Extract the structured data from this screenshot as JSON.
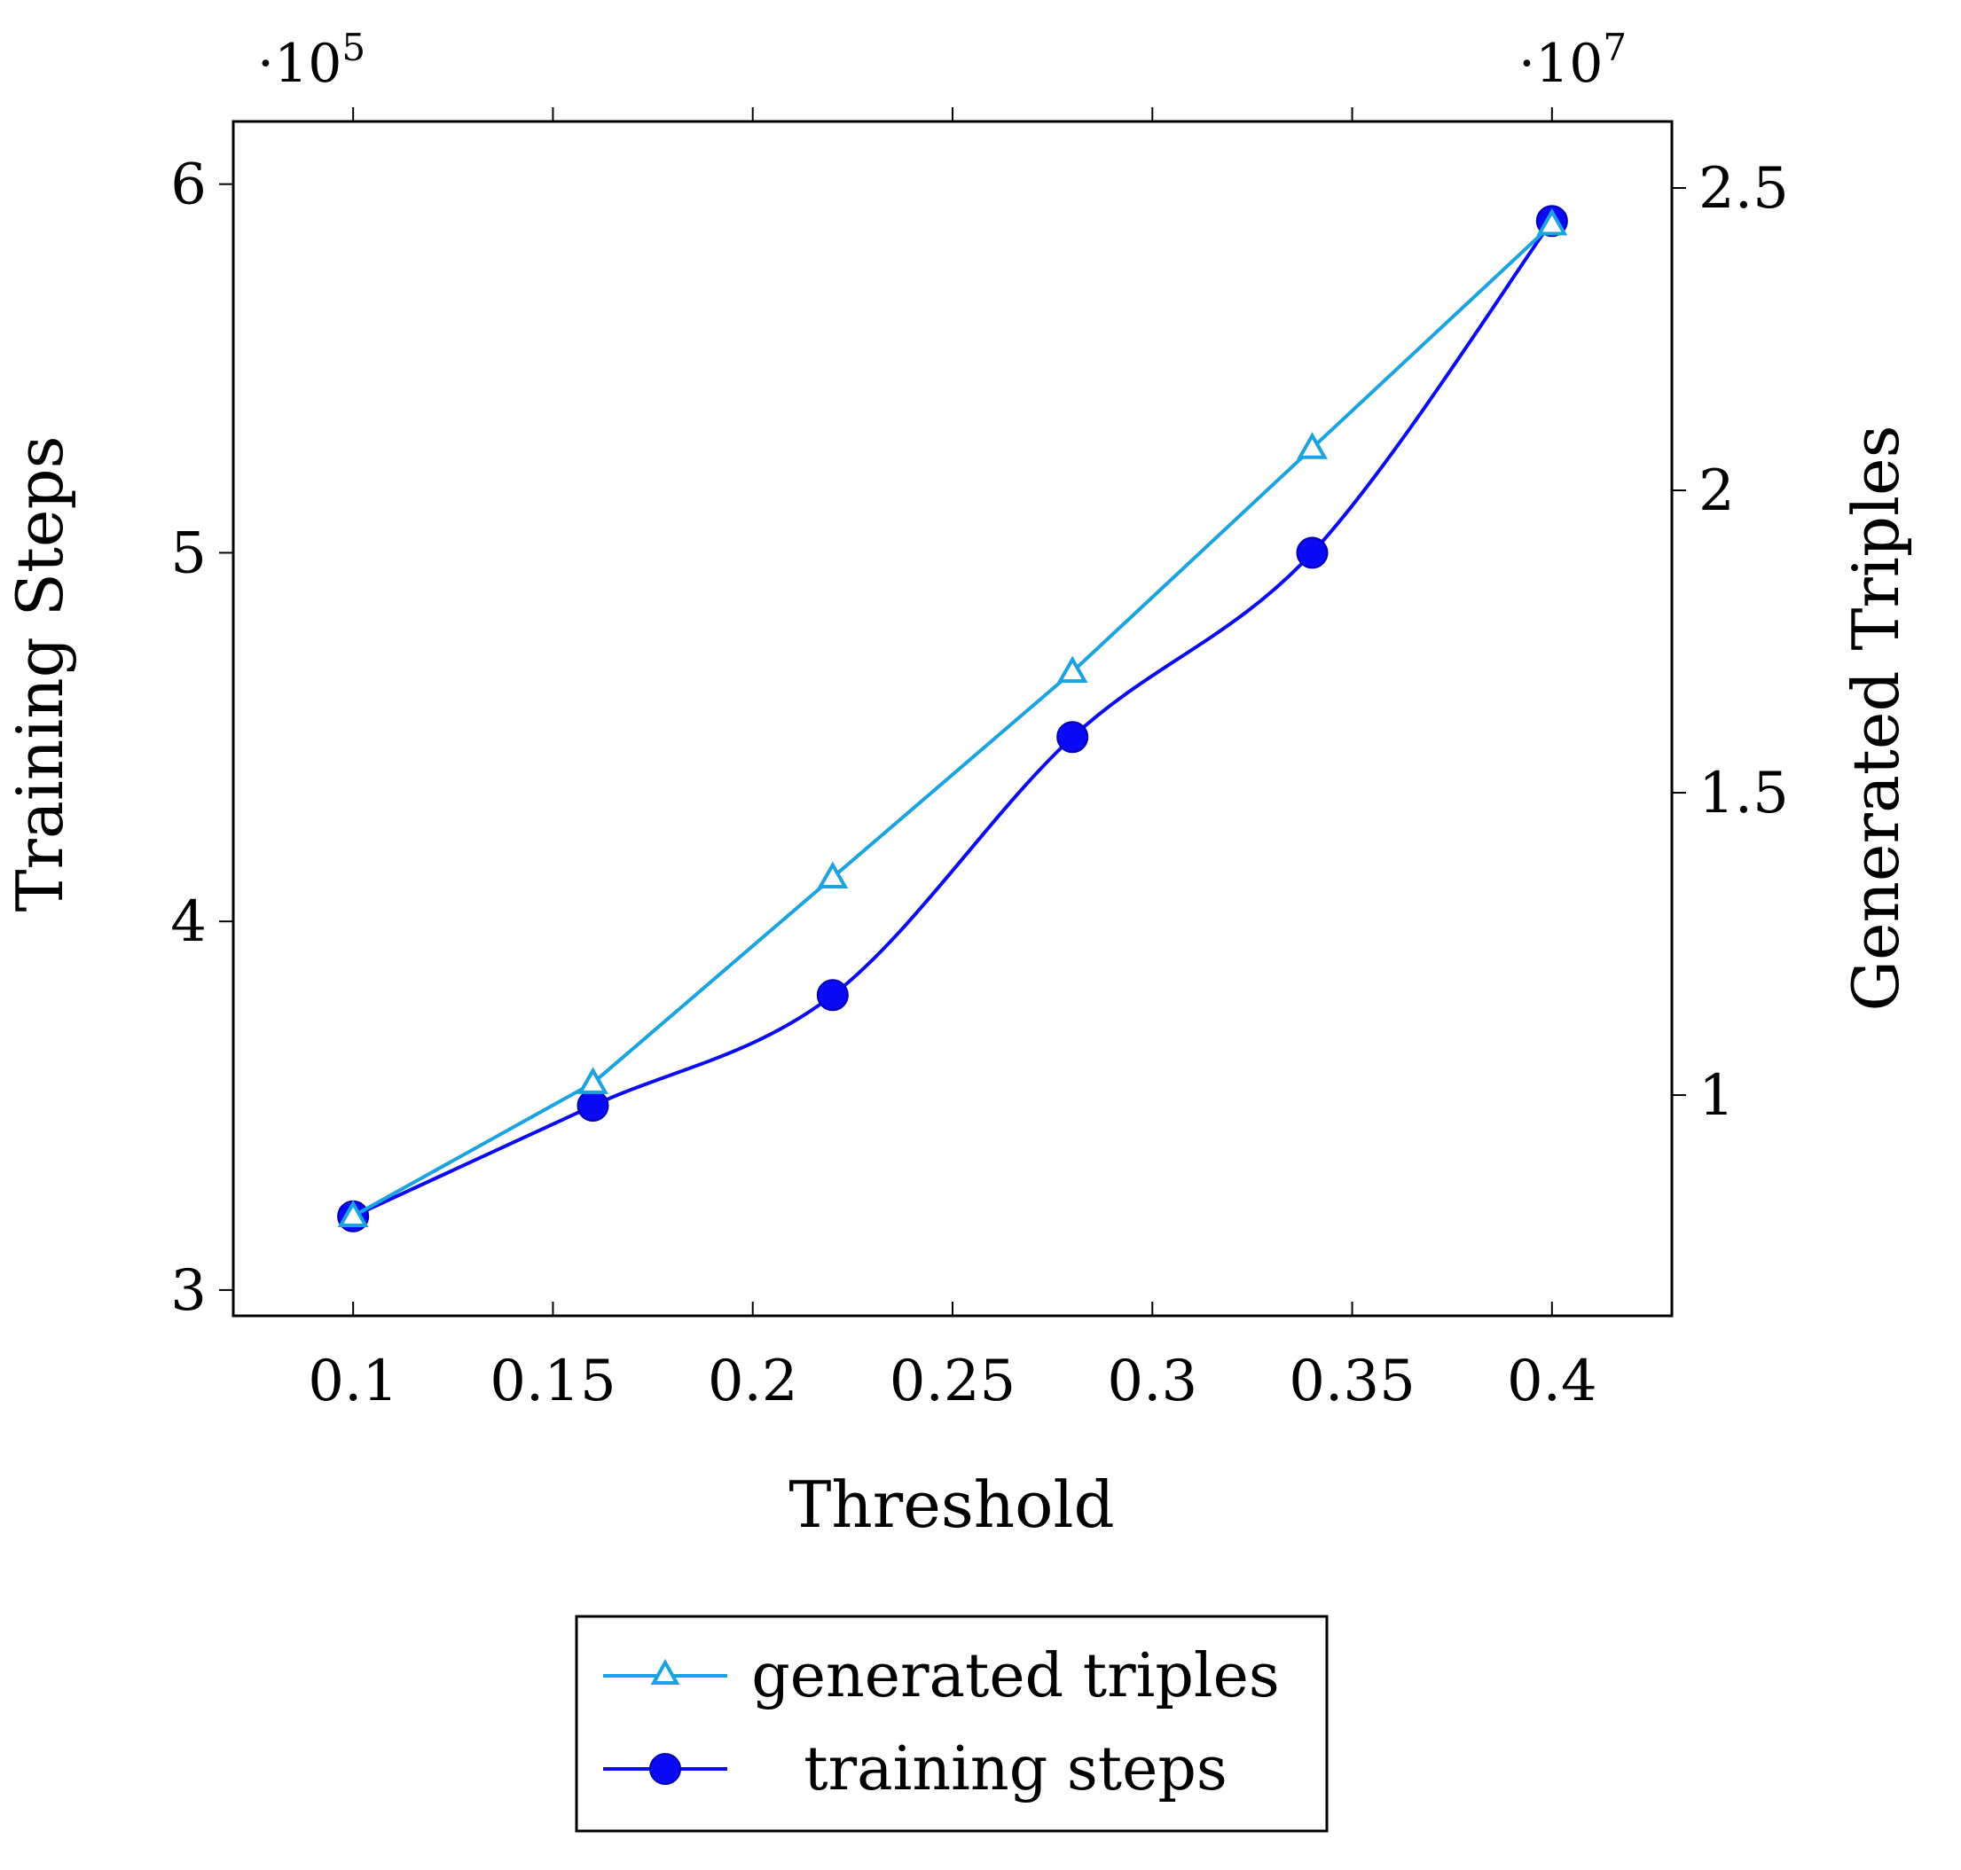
{
  "chart_data": {
    "type": "line",
    "x": [
      0.1,
      0.16,
      0.22,
      0.28,
      0.34,
      0.4
    ],
    "x_ticks": [
      "0.1",
      "0.15",
      "0.2",
      "0.25",
      "0.3",
      "0.35",
      "0.4"
    ],
    "x_tick_values": [
      0.1,
      0.15,
      0.2,
      0.25,
      0.3,
      0.35,
      0.4
    ],
    "xlabel": "Threshold",
    "xlim": [
      0.07,
      0.43
    ],
    "left_axis": {
      "label": "Training Steps",
      "multiplier": "·10",
      "multiplier_exp": "5",
      "ticks": [
        "3",
        "4",
        "5",
        "6"
      ],
      "tick_values": [
        3,
        4,
        5,
        6
      ],
      "lim": [
        2.93,
        6.17
      ]
    },
    "right_axis": {
      "label": "Generated Triples",
      "multiplier": "·10",
      "multiplier_exp": "7",
      "ticks": [
        "1",
        "1.5",
        "2",
        "2.5"
      ],
      "tick_values": [
        1,
        1.5,
        2,
        2.5
      ],
      "lim": [
        0.635,
        2.61
      ]
    },
    "series": [
      {
        "name": "generated triples",
        "axis": "right",
        "marker": "triangle",
        "color": "#1aa3e0",
        "values": [
          0.8,
          1.02,
          1.36,
          1.7,
          2.07,
          2.44
        ]
      },
      {
        "name": "training steps",
        "axis": "left",
        "marker": "circle",
        "color": "#0a0af5",
        "values": [
          3.2,
          3.5,
          3.8,
          4.5,
          5.0,
          5.9
        ]
      }
    ],
    "legend": {
      "position": "bottom-center",
      "entries": [
        "generated triples",
        "training steps"
      ]
    },
    "grid": false
  }
}
